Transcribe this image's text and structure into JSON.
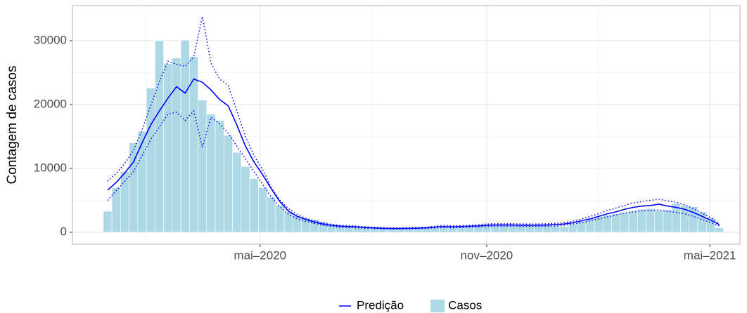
{
  "chart_data": {
    "type": "bar",
    "y_label": "Contagem de casos",
    "categories": [
      null,
      null,
      null,
      null,
      null,
      null,
      null,
      null,
      null,
      null,
      null,
      null,
      null,
      null,
      null,
      null,
      null,
      null,
      null,
      null,
      null,
      null,
      null,
      null,
      null,
      null,
      null,
      null,
      null,
      null,
      null,
      null,
      null,
      null,
      null,
      null,
      null,
      null,
      null,
      null,
      null,
      null,
      null,
      null,
      null,
      null,
      null,
      null,
      null,
      null,
      null,
      null,
      null,
      null,
      null,
      null,
      null,
      null,
      null,
      null,
      null,
      null,
      null,
      null,
      null,
      null,
      null,
      null,
      null,
      null,
      null,
      null
    ],
    "xlim": [
      -4.08,
      73.4
    ],
    "xticks": [
      {
        "value": 17.7,
        "label": "mai–2020"
      },
      {
        "value": 44.0,
        "label": "nov–2020"
      },
      {
        "value": 69.9,
        "label": "mai–2021"
      }
    ],
    "minor_xticks": [
      4.5,
      30.8,
      56.9
    ],
    "ylim": [
      -1870,
      35500
    ],
    "yticks": [
      0,
      10000,
      20000,
      30000
    ],
    "minor_yticks": [
      5000,
      15000,
      25000
    ],
    "grid": true,
    "legend": "bottom",
    "series": [
      {
        "name": "Predição",
        "type": "line",
        "color": "#0000ff",
        "values": [
          6600,
          7800,
          9300,
          11000,
          14000,
          16800,
          19000,
          21000,
          22800,
          21800,
          24000,
          23500,
          22300,
          20800,
          19800,
          16800,
          13500,
          11000,
          9000,
          6800,
          4800,
          3300,
          2500,
          2000,
          1600,
          1300,
          1100,
          950,
          900,
          850,
          750,
          680,
          620,
          600,
          600,
          620,
          650,
          700,
          800,
          900,
          850,
          900,
          950,
          1000,
          1100,
          1150,
          1150,
          1150,
          1100,
          1100,
          1100,
          1150,
          1200,
          1300,
          1500,
          1800,
          2100,
          2500,
          2900,
          3200,
          3600,
          3900,
          4100,
          4200,
          4400,
          4100,
          3900,
          3600,
          3100,
          2500,
          1900,
          1200
        ],
        "upper": [
          8000,
          9200,
          10800,
          12800,
          16000,
          19800,
          23500,
          26800,
          26300,
          26000,
          27500,
          33800,
          26500,
          24000,
          23000,
          19000,
          15000,
          12000,
          9800,
          7000,
          5000,
          3700,
          2800,
          2200,
          1800,
          1500,
          1250,
          1100,
          1050,
          950,
          850,
          780,
          720,
          700,
          700,
          720,
          750,
          800,
          950,
          1100,
          1000,
          1050,
          1100,
          1200,
          1300,
          1350,
          1350,
          1350,
          1300,
          1300,
          1300,
          1350,
          1400,
          1500,
          1750,
          2100,
          2500,
          2900,
          3400,
          3800,
          4200,
          4600,
          4800,
          5000,
          5200,
          4900,
          4700,
          4300,
          3700,
          3000,
          2300,
          1400
        ],
        "lower": [
          5000,
          6500,
          8000,
          9500,
          12000,
          14500,
          16500,
          18500,
          18800,
          17500,
          19000,
          13300,
          18000,
          17000,
          15500,
          13500,
          11500,
          9500,
          7500,
          5500,
          4000,
          2800,
          2100,
          1700,
          1400,
          1100,
          900,
          800,
          750,
          700,
          620,
          580,
          540,
          520,
          520,
          540,
          560,
          600,
          680,
          750,
          700,
          750,
          800,
          850,
          900,
          950,
          950,
          950,
          900,
          900,
          900,
          950,
          1000,
          1100,
          1300,
          1500,
          1800,
          2100,
          2400,
          2700,
          3000,
          3200,
          3400,
          3400,
          3500,
          3300,
          3100,
          2900,
          2500,
          2000,
          1500,
          1000
        ]
      },
      {
        "name": "Casos",
        "type": "bar",
        "color": "#add8e6",
        "values": [
          3300,
          7000,
          9500,
          14000,
          15800,
          22600,
          30000,
          26400,
          27300,
          30100,
          27500,
          20700,
          18500,
          17500,
          15200,
          12500,
          10300,
          8400,
          7000,
          5500,
          4200,
          3200,
          2600,
          2200,
          2000,
          1600,
          1200,
          1000,
          900,
          800,
          700,
          650,
          600,
          600,
          550,
          550,
          600,
          650,
          700,
          800,
          900,
          850,
          850,
          1000,
          1100,
          1100,
          1200,
          1200,
          1100,
          1100,
          1200,
          1100,
          1000,
          900,
          1300,
          1700,
          2200,
          2500,
          2700,
          2900,
          3100,
          3300,
          3600,
          3700,
          3400,
          3500,
          4500,
          4200,
          4000,
          3200,
          2300,
          700
        ]
      }
    ]
  }
}
